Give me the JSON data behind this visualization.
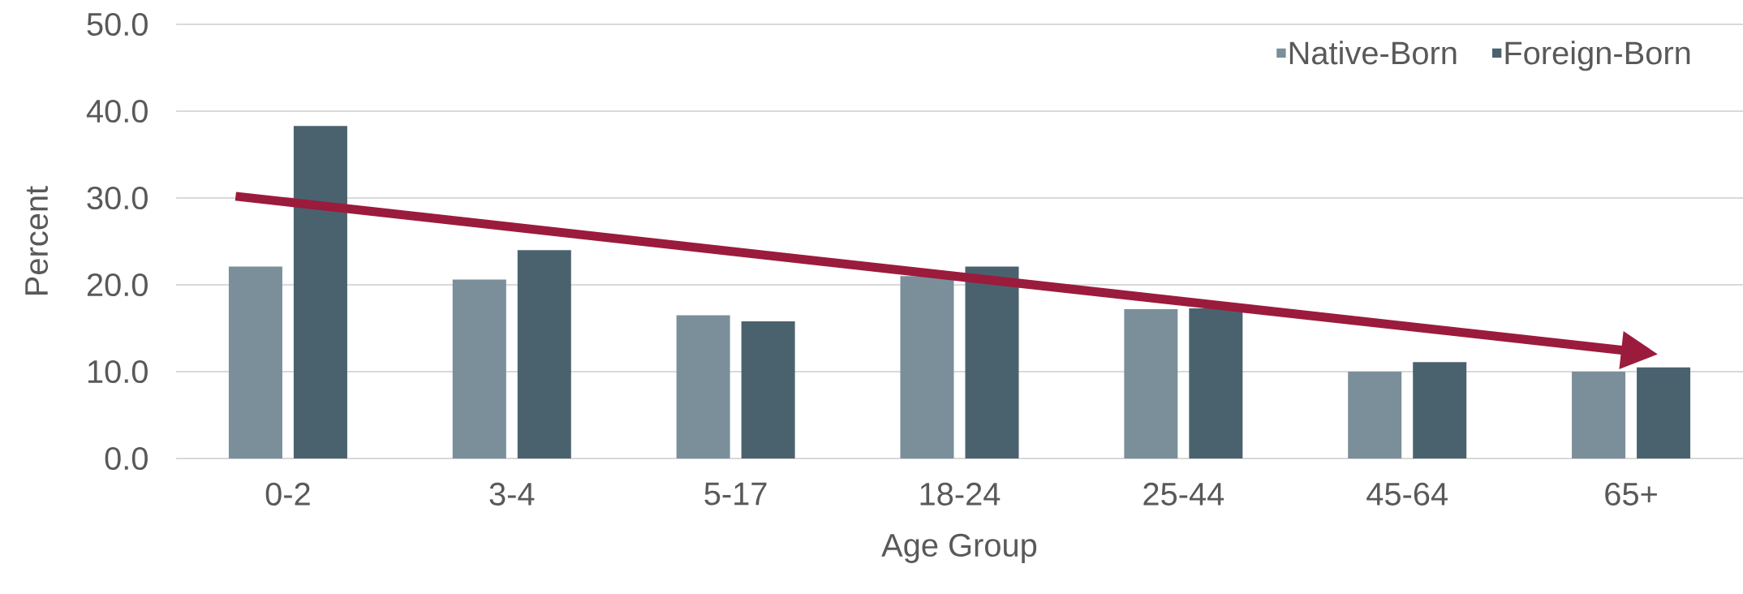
{
  "chart_data": {
    "type": "bar",
    "xlabel": "Age Group",
    "ylabel": "Percent",
    "categories": [
      "0-2",
      "3-4",
      "5-17",
      "18-24",
      "25-44",
      "45-64",
      "65+"
    ],
    "series": [
      {
        "name": "Native-Born",
        "color": "#7a8f9a",
        "values": [
          22.1,
          20.6,
          16.5,
          21.0,
          17.2,
          10.0,
          10.0
        ]
      },
      {
        "name": "Foreign-Born",
        "color": "#4a626e",
        "values": [
          38.3,
          24.0,
          15.8,
          22.1,
          17.3,
          11.1,
          10.5
        ]
      }
    ],
    "ylim": [
      0,
      50
    ],
    "yticks": [
      {
        "value": 0,
        "label": "0.0"
      },
      {
        "value": 10,
        "label": "10.0"
      },
      {
        "value": 20,
        "label": "20.0"
      },
      {
        "value": 30,
        "label": "30.0"
      },
      {
        "value": 40,
        "label": "40.0"
      },
      {
        "value": 50,
        "label": "50.0"
      }
    ],
    "grid": "y",
    "legend": "top right"
  }
}
